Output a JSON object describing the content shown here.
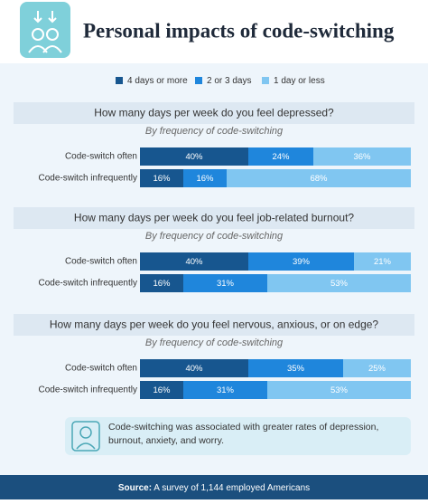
{
  "title": "Personal impacts of code-switching",
  "legend": [
    {
      "name": "4 days or more",
      "color": "#17568f"
    },
    {
      "name": "2 or 3 days",
      "color": "#1f86dc"
    },
    {
      "name": "1 day or less",
      "color": "#80c6f1"
    }
  ],
  "chart_data": [
    {
      "type": "bar",
      "stacked": true,
      "orientation": "horizontal",
      "title": "How many days per week do you feel depressed?",
      "subtitle": "By frequency of code-switching",
      "categories": [
        "Code-switch often",
        "Code-switch infrequently"
      ],
      "xlim": [
        0,
        100
      ],
      "series": [
        {
          "values": [
            40,
            16
          ],
          "value_labels": [
            "40%",
            "16%"
          ]
        },
        {
          "values": [
            24,
            16
          ],
          "value_labels": [
            "24%",
            "16%"
          ]
        },
        {
          "values": [
            36,
            68
          ],
          "value_labels": [
            "36%",
            "68%"
          ]
        }
      ]
    },
    {
      "type": "bar",
      "stacked": true,
      "orientation": "horizontal",
      "title": "How many days per week do you feel job-related burnout?",
      "subtitle": "By frequency of code-switching",
      "categories": [
        "Code-switch often",
        "Code-switch infrequently"
      ],
      "xlim": [
        0,
        100
      ],
      "series": [
        {
          "values": [
            40,
            16
          ],
          "value_labels": [
            "40%",
            "16%"
          ]
        },
        {
          "values": [
            39,
            31
          ],
          "value_labels": [
            "39%",
            "31%"
          ]
        },
        {
          "values": [
            21,
            53
          ],
          "value_labels": [
            "21%",
            "53%"
          ]
        }
      ]
    },
    {
      "type": "bar",
      "stacked": true,
      "orientation": "horizontal",
      "title": "How many days per week do you feel nervous, anxious, or on edge?",
      "subtitle": "By frequency of code-switching",
      "categories": [
        "Code-switch often",
        "Code-switch infrequently"
      ],
      "xlim": [
        0,
        100
      ],
      "series": [
        {
          "values": [
            40,
            16
          ],
          "value_labels": [
            "40%",
            "16%"
          ]
        },
        {
          "values": [
            35,
            31
          ],
          "value_labels": [
            "35%",
            "31%"
          ]
        },
        {
          "values": [
            25,
            53
          ],
          "value_labels": [
            "25%",
            "53%"
          ]
        }
      ]
    }
  ],
  "note": "Code-switching was associated with greater rates of depression, burnout, anxiety, and worry.",
  "source": {
    "label": "Source:",
    "text": "A survey of 1,144 employed Americans"
  }
}
